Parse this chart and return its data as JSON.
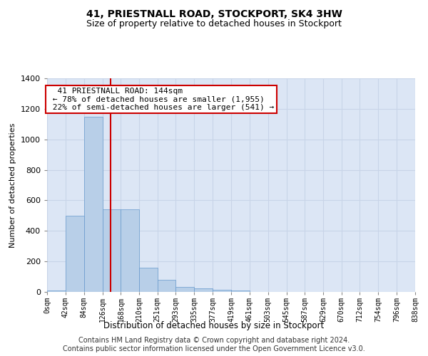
{
  "title": "41, PRIESTNALL ROAD, STOCKPORT, SK4 3HW",
  "subtitle": "Size of property relative to detached houses in Stockport",
  "xlabel": "Distribution of detached houses by size in Stockport",
  "ylabel": "Number of detached properties",
  "bin_edges": [
    0,
    42,
    84,
    126,
    168,
    210,
    251,
    293,
    335,
    377,
    419,
    461,
    503,
    545,
    587,
    629,
    670,
    712,
    754,
    796,
    838
  ],
  "bar_heights": [
    10,
    500,
    1150,
    540,
    540,
    160,
    80,
    35,
    25,
    15,
    10,
    0,
    0,
    0,
    0,
    0,
    0,
    0,
    0,
    0
  ],
  "bar_color": "#b8cfe8",
  "bar_edgecolor": "#6699cc",
  "grid_color": "#c8d4e8",
  "background_color": "#dce6f5",
  "red_line_x": 144,
  "annotation_text": "  41 PRIESTNALL ROAD: 144sqm  \n ← 78% of detached houses are smaller (1,955)\n 22% of semi-detached houses are larger (541) →",
  "annotation_box_color": "#ffffff",
  "red_color": "#cc0000",
  "ylim": [
    0,
    1400
  ],
  "yticks": [
    0,
    200,
    400,
    600,
    800,
    1000,
    1200,
    1400
  ],
  "xtick_labels": [
    "0sqm",
    "42sqm",
    "84sqm",
    "126sqm",
    "168sqm",
    "210sqm",
    "251sqm",
    "293sqm",
    "335sqm",
    "377sqm",
    "419sqm",
    "461sqm",
    "503sqm",
    "545sqm",
    "587sqm",
    "629sqm",
    "670sqm",
    "712sqm",
    "754sqm",
    "796sqm",
    "838sqm"
  ],
  "footer": "Contains HM Land Registry data © Crown copyright and database right 2024.\nContains public sector information licensed under the Open Government Licence v3.0.",
  "title_fontsize": 10,
  "subtitle_fontsize": 9,
  "footer_fontsize": 7,
  "annotation_fontsize": 8
}
